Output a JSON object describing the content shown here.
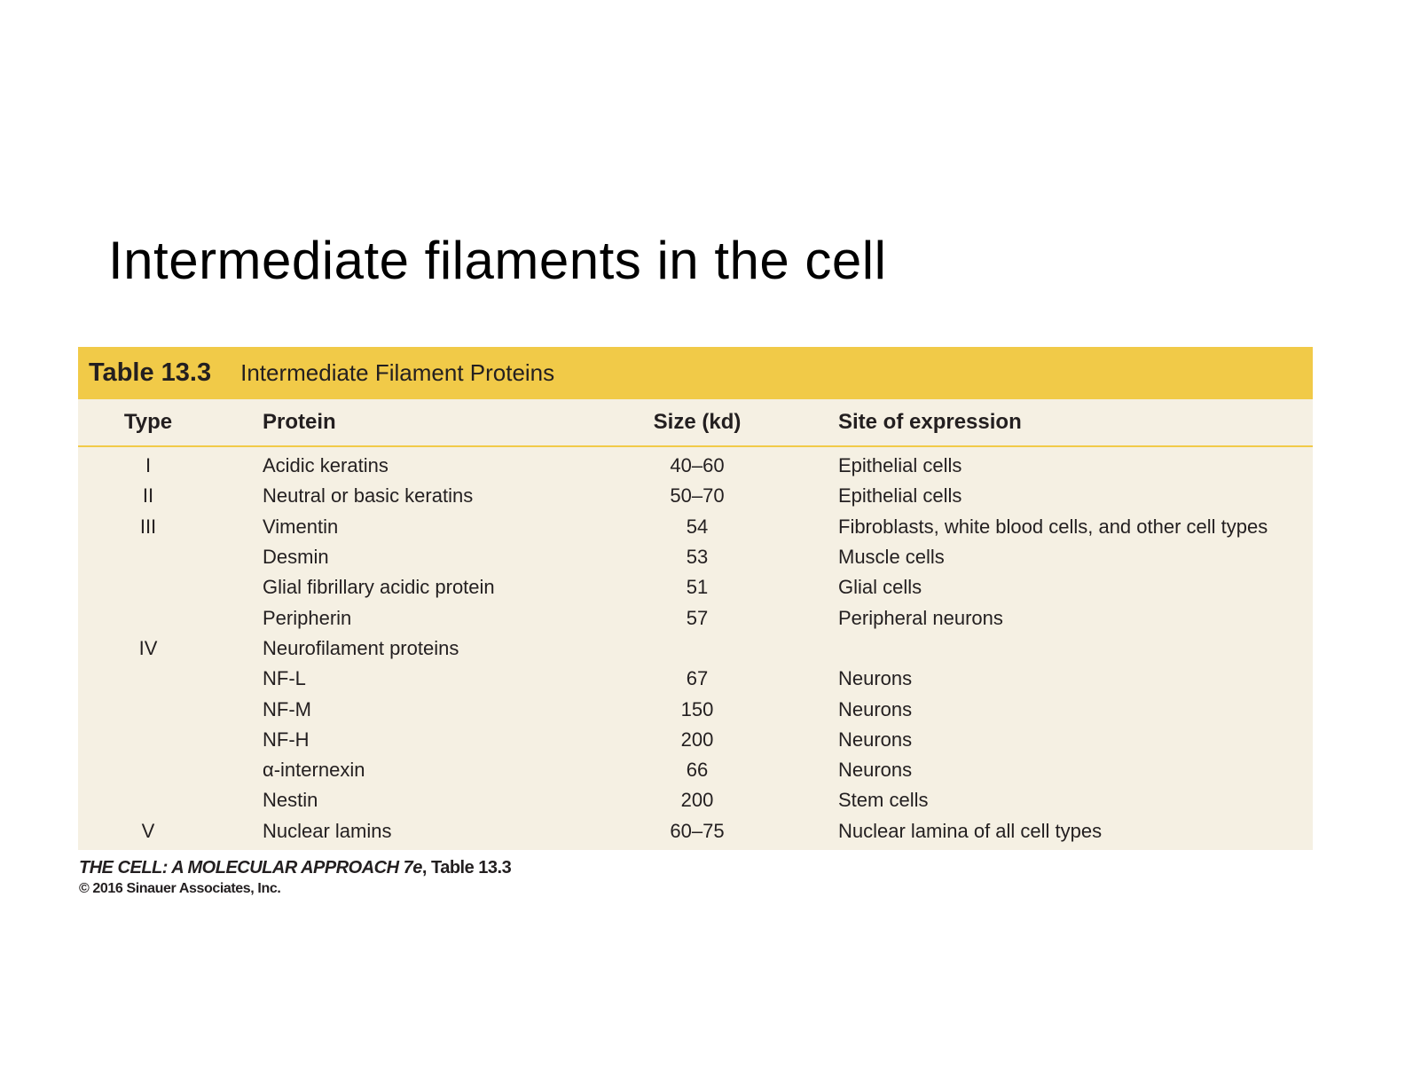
{
  "slide": {
    "title": "Intermediate filaments in the cell"
  },
  "table": {
    "number": "Table 13.3",
    "caption": "Intermediate Filament Proteins",
    "columns": [
      "Type",
      "Protein",
      "Size (kd)",
      "Site of expression"
    ],
    "rows": [
      {
        "type": "I",
        "protein": "Acidic keratins",
        "size": "40–60",
        "site": "Epithelial cells"
      },
      {
        "type": "II",
        "protein": "Neutral or basic keratins",
        "size": "50–70",
        "site": "Epithelial cells"
      },
      {
        "type": "III",
        "protein": "Vimentin",
        "size": "54",
        "site": "Fibroblasts, white blood cells, and other cell types"
      },
      {
        "type": "",
        "protein": "Desmin",
        "size": "53",
        "site": "Muscle cells"
      },
      {
        "type": "",
        "protein": "Glial fibrillary acidic protein",
        "size": "51",
        "site": "Glial cells"
      },
      {
        "type": "",
        "protein": "Peripherin",
        "size": "57",
        "site": "Peripheral neurons"
      },
      {
        "type": "IV",
        "protein": "Neurofilament proteins",
        "size": "",
        "site": ""
      },
      {
        "type": "",
        "protein": "NF-L",
        "size": "67",
        "site": "Neurons"
      },
      {
        "type": "",
        "protein": "NF-M",
        "size": "150",
        "site": "Neurons"
      },
      {
        "type": "",
        "protein": "NF-H",
        "size": "200",
        "site": "Neurons"
      },
      {
        "type": "",
        "protein": "α-internexin",
        "size": "66",
        "site": "Neurons"
      },
      {
        "type": "",
        "protein": "Nestin",
        "size": "200",
        "site": "Stem cells"
      },
      {
        "type": "V",
        "protein": "Nuclear lamins",
        "size": "60–75",
        "site": "Nuclear lamina of all cell types"
      }
    ]
  },
  "credit": {
    "book": "THE CELL: A MOLECULAR APPROACH 7e",
    "ref": ", Table 13.3",
    "copyright": "© 2016 Sinauer Associates, Inc."
  },
  "colors": {
    "header_bar": "#f1ca48",
    "table_background": "#f5f0e3",
    "text": "#231f20"
  }
}
